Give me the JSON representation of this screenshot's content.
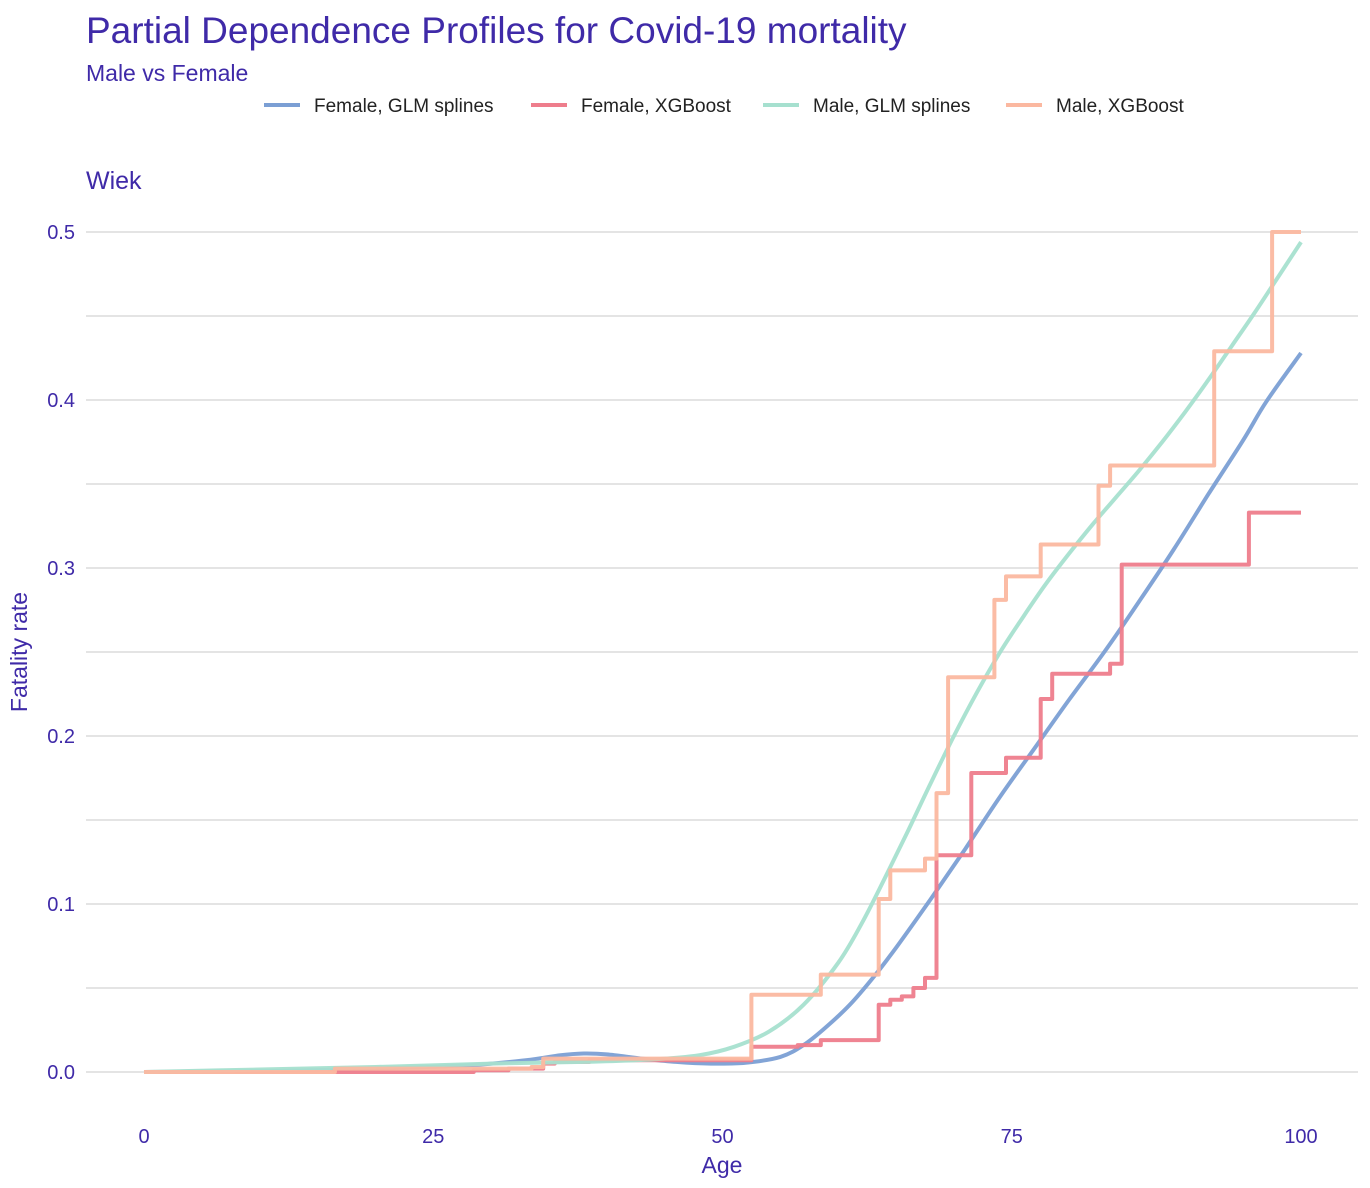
{
  "colors": {
    "text": "#3f2aa8",
    "grid": "#e4e4e4",
    "series": {
      "female_glm": "#7b9fd4",
      "female_xgb": "#ee7d8c",
      "male_glm": "#a6e0cf",
      "male_xgb": "#fbb8a0"
    }
  },
  "chart_data": {
    "type": "line",
    "title": "Partial Dependence Profiles for Covid-19 mortality",
    "subtitle": "Male vs Female",
    "facet_label": "Wiek",
    "xlabel": "Age",
    "ylabel": "Fatality rate",
    "xlim": [
      0,
      100
    ],
    "ylim": [
      0,
      0.5
    ],
    "x_ticks": [
      0,
      25,
      50,
      75,
      100
    ],
    "x_tick_labels": [
      "0",
      "25",
      "50",
      "75",
      "100"
    ],
    "y_ticks": [
      0,
      0.1,
      0.2,
      0.3,
      0.4,
      0.5
    ],
    "y_tick_labels": [
      "0.0",
      "0.1",
      "0.2",
      "0.3",
      "0.4",
      "0.5"
    ],
    "grid": true,
    "legend_position": "top",
    "series": [
      {
        "name": "Female, GLM splines",
        "key": "female_glm",
        "style": "smooth",
        "points": [
          [
            0,
            0.0
          ],
          [
            10,
            0.0005
          ],
          [
            20,
            0.002
          ],
          [
            28,
            0.004
          ],
          [
            33,
            0.007
          ],
          [
            36,
            0.01
          ],
          [
            38,
            0.011
          ],
          [
            40,
            0.0105
          ],
          [
            43,
            0.008
          ],
          [
            46,
            0.006
          ],
          [
            49,
            0.005
          ],
          [
            52,
            0.0055
          ],
          [
            55,
            0.009
          ],
          [
            57,
            0.016
          ],
          [
            59,
            0.027
          ],
          [
            61,
            0.04
          ],
          [
            63,
            0.056
          ],
          [
            65,
            0.074
          ],
          [
            68,
            0.103
          ],
          [
            71,
            0.133
          ],
          [
            74,
            0.164
          ],
          [
            77,
            0.193
          ],
          [
            80,
            0.222
          ],
          [
            83,
            0.25
          ],
          [
            86,
            0.28
          ],
          [
            89,
            0.311
          ],
          [
            92,
            0.344
          ],
          [
            95,
            0.376
          ],
          [
            97,
            0.399
          ],
          [
            100,
            0.428
          ]
        ]
      },
      {
        "name": "Female, XGBoost",
        "key": "female_xgb",
        "style": "step",
        "points": [
          [
            0,
            0.0
          ],
          [
            28.5,
            0.001
          ],
          [
            31.5,
            0.002
          ],
          [
            34.5,
            0.005
          ],
          [
            35.5,
            0.006
          ],
          [
            38.5,
            0.007
          ],
          [
            52.5,
            0.015
          ],
          [
            56.5,
            0.016
          ],
          [
            58.5,
            0.019
          ],
          [
            63.5,
            0.04
          ],
          [
            64.5,
            0.043
          ],
          [
            65.5,
            0.045
          ],
          [
            66.5,
            0.05
          ],
          [
            67.5,
            0.056
          ],
          [
            68.5,
            0.129
          ],
          [
            71.5,
            0.178
          ],
          [
            74.5,
            0.187
          ],
          [
            77.5,
            0.222
          ],
          [
            78.5,
            0.237
          ],
          [
            83.5,
            0.243
          ],
          [
            84.5,
            0.302
          ],
          [
            95.5,
            0.333
          ],
          [
            100,
            0.333
          ]
        ]
      },
      {
        "name": "Male, GLM splines",
        "key": "male_glm",
        "style": "smooth",
        "points": [
          [
            0,
            0.0
          ],
          [
            10,
            0.0015
          ],
          [
            20,
            0.003
          ],
          [
            30,
            0.005
          ],
          [
            38,
            0.006
          ],
          [
            44,
            0.0075
          ],
          [
            48,
            0.01
          ],
          [
            51,
            0.015
          ],
          [
            54,
            0.024
          ],
          [
            57,
            0.04
          ],
          [
            60,
            0.065
          ],
          [
            62,
            0.088
          ],
          [
            64,
            0.115
          ],
          [
            66,
            0.143
          ],
          [
            68,
            0.172
          ],
          [
            70,
            0.2
          ],
          [
            72,
            0.226
          ],
          [
            74,
            0.25
          ],
          [
            76,
            0.271
          ],
          [
            78,
            0.291
          ],
          [
            80,
            0.309
          ],
          [
            82,
            0.326
          ],
          [
            84,
            0.342
          ],
          [
            86,
            0.358
          ],
          [
            88,
            0.375
          ],
          [
            90,
            0.393
          ],
          [
            92,
            0.412
          ],
          [
            94,
            0.432
          ],
          [
            96,
            0.452
          ],
          [
            98,
            0.473
          ],
          [
            100,
            0.494
          ]
        ]
      },
      {
        "name": "Male, XGBoost",
        "key": "male_xgb",
        "style": "step",
        "points": [
          [
            0,
            0.0
          ],
          [
            16.5,
            0.002
          ],
          [
            33.5,
            0.003
          ],
          [
            34.5,
            0.008
          ],
          [
            52.5,
            0.046
          ],
          [
            58.5,
            0.058
          ],
          [
            63.5,
            0.103
          ],
          [
            64.5,
            0.12
          ],
          [
            67.5,
            0.127
          ],
          [
            68.5,
            0.166
          ],
          [
            69.5,
            0.235
          ],
          [
            73.5,
            0.281
          ],
          [
            74.5,
            0.295
          ],
          [
            77.5,
            0.314
          ],
          [
            82.5,
            0.349
          ],
          [
            83.5,
            0.361
          ],
          [
            92.5,
            0.429
          ],
          [
            97.5,
            0.5
          ],
          [
            100,
            0.5
          ]
        ]
      }
    ]
  }
}
